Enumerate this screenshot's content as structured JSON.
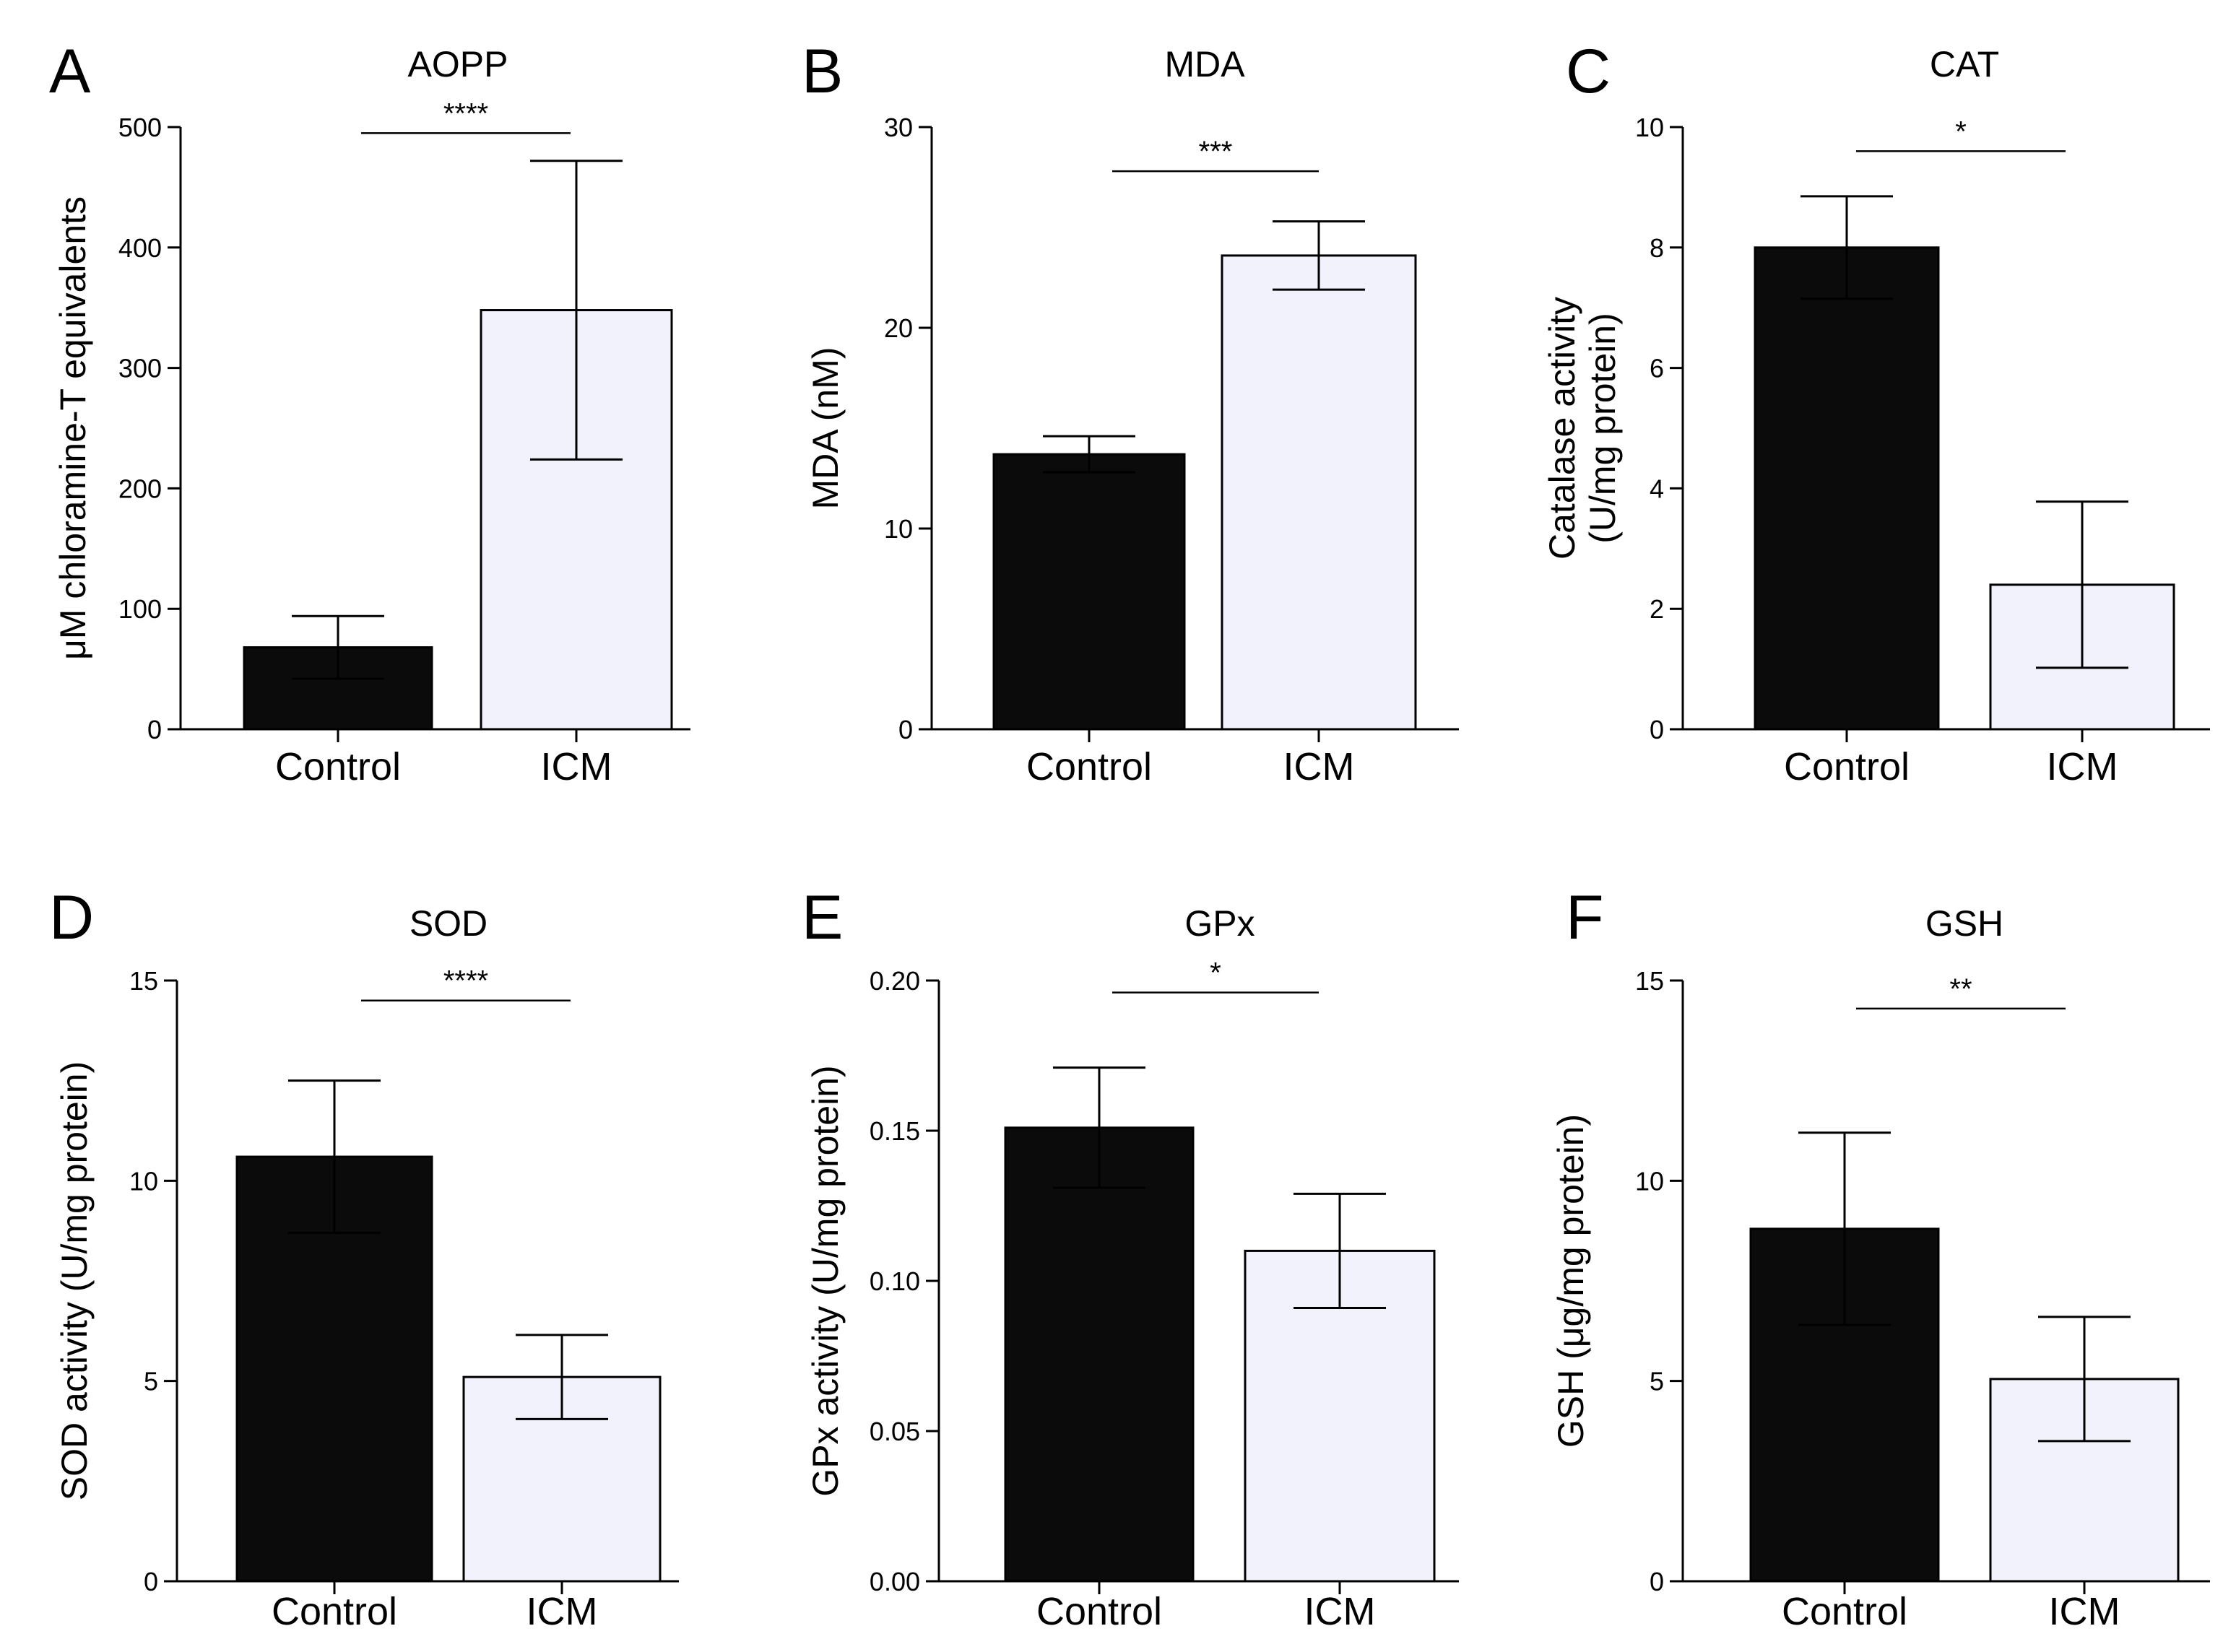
{
  "chart_data": [
    {
      "panel": "A",
      "title": "AOPP",
      "type": "bar",
      "ylabel_lines": [
        "μM chloramine-T equivalents"
      ],
      "categories": [
        "Control",
        "ICM"
      ],
      "values": [
        68,
        348
      ],
      "errors": [
        26,
        124
      ],
      "ylim": [
        0,
        500
      ],
      "yticks": [
        0,
        100,
        200,
        300,
        400,
        500
      ],
      "ytick_labels": [
        "0",
        "100",
        "200",
        "300",
        "400",
        "500"
      ],
      "significance": "****",
      "sig_y": 495
    },
    {
      "panel": "B",
      "title": "MDA",
      "type": "bar",
      "ylabel_lines": [
        "MDA (nM)"
      ],
      "categories": [
        "Control",
        "ICM"
      ],
      "values": [
        13.7,
        23.6
      ],
      "errors": [
        0.9,
        1.7
      ],
      "ylim": [
        0,
        30
      ],
      "yticks": [
        0,
        10,
        20,
        30
      ],
      "ytick_labels": [
        "0",
        "10",
        "20",
        "30"
      ],
      "significance": "***",
      "sig_y": 27.8
    },
    {
      "panel": "C",
      "title": "CAT",
      "type": "bar",
      "ylabel_lines": [
        "Catalase activity",
        "(U/mg protein)"
      ],
      "categories": [
        "Control",
        "ICM"
      ],
      "values": [
        8.0,
        2.4
      ],
      "errors": [
        0.85,
        1.38
      ],
      "ylim": [
        0,
        10
      ],
      "yticks": [
        0,
        2,
        4,
        6,
        8,
        10
      ],
      "ytick_labels": [
        "0",
        "2",
        "4",
        "6",
        "8",
        "10"
      ],
      "significance": "*",
      "sig_y": 9.6
    },
    {
      "panel": "D",
      "title": "SOD",
      "type": "bar",
      "ylabel_lines": [
        "SOD activity (U/mg protein)"
      ],
      "categories": [
        "Control",
        "ICM"
      ],
      "values": [
        10.6,
        5.1
      ],
      "errors": [
        1.9,
        1.05
      ],
      "ylim": [
        0,
        15
      ],
      "yticks": [
        0,
        5,
        10,
        15
      ],
      "ytick_labels": [
        "0",
        "5",
        "10",
        "15"
      ],
      "significance": "****",
      "sig_y": 14.5
    },
    {
      "panel": "E",
      "title": "GPx",
      "type": "bar",
      "ylabel_lines": [
        "GPx activity (U/mg protein)"
      ],
      "categories": [
        "Control",
        "ICM"
      ],
      "values": [
        0.151,
        0.11
      ],
      "errors": [
        0.02,
        0.019
      ],
      "ylim": [
        0,
        0.2
      ],
      "yticks": [
        0,
        0.05,
        0.1,
        0.15,
        0.2
      ],
      "ytick_labels": [
        "0.00",
        "0.05",
        "0.10",
        "0.15",
        "0.20"
      ],
      "significance": "*",
      "sig_y": 0.196
    },
    {
      "panel": "F",
      "title": "GSH",
      "type": "bar",
      "ylabel_lines": [
        "GSH (μg/mg protein)"
      ],
      "categories": [
        "Control",
        "ICM"
      ],
      "values": [
        8.8,
        5.05
      ],
      "errors": [
        2.4,
        1.55
      ],
      "ylim": [
        0,
        15
      ],
      "yticks": [
        0,
        5,
        10,
        15
      ],
      "ytick_labels": [
        "0",
        "5",
        "10",
        "15"
      ],
      "significance": "**",
      "sig_y": 14.3
    }
  ],
  "colors": {
    "control_fill": "#0b0b0b",
    "icm_fill": "#f2f2fc",
    "stroke": "#000000"
  }
}
